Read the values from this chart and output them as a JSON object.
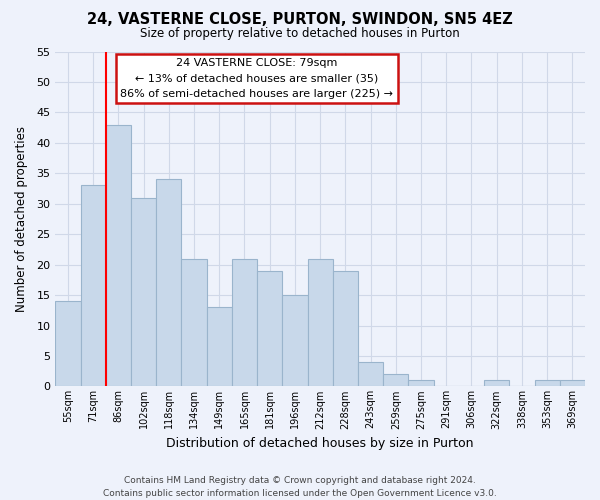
{
  "title": "24, VASTERNE CLOSE, PURTON, SWINDON, SN5 4EZ",
  "subtitle": "Size of property relative to detached houses in Purton",
  "xlabel": "Distribution of detached houses by size in Purton",
  "ylabel": "Number of detached properties",
  "bar_labels": [
    "55sqm",
    "71sqm",
    "86sqm",
    "102sqm",
    "118sqm",
    "134sqm",
    "149sqm",
    "165sqm",
    "181sqm",
    "196sqm",
    "212sqm",
    "228sqm",
    "243sqm",
    "259sqm",
    "275sqm",
    "291sqm",
    "306sqm",
    "322sqm",
    "338sqm",
    "353sqm",
    "369sqm"
  ],
  "bar_values": [
    14,
    33,
    43,
    31,
    34,
    21,
    13,
    21,
    19,
    15,
    21,
    19,
    4,
    2,
    1,
    0,
    0,
    1,
    0,
    1,
    1
  ],
  "bar_color": "#c8d8ea",
  "bar_edge_color": "#9ab4cc",
  "vline_x": 2,
  "vline_color": "red",
  "ylim": [
    0,
    55
  ],
  "yticks": [
    0,
    5,
    10,
    15,
    20,
    25,
    30,
    35,
    40,
    45,
    50,
    55
  ],
  "annotation_title": "24 VASTERNE CLOSE: 79sqm",
  "annotation_line1": "← 13% of detached houses are smaller (35)",
  "annotation_line2": "86% of semi-detached houses are larger (225) →",
  "footer1": "Contains HM Land Registry data © Crown copyright and database right 2024.",
  "footer2": "Contains public sector information licensed under the Open Government Licence v3.0.",
  "background_color": "#eef2fb",
  "grid_color": "#d0d8e8"
}
